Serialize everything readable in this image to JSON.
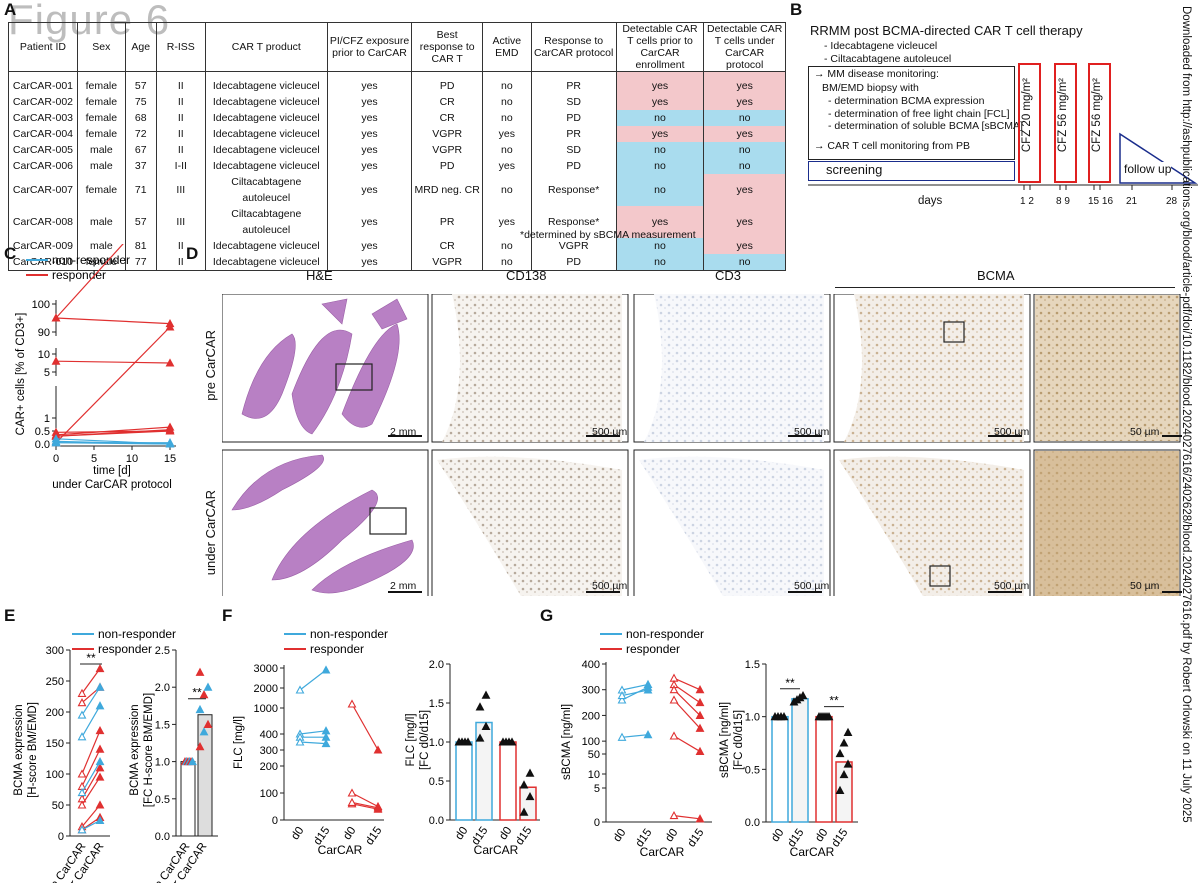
{
  "watermark": "Figure 6",
  "panel_labels": {
    "a": "A",
    "b": "B",
    "c": "C",
    "d": "D",
    "e": "E",
    "f": "F",
    "g": "G"
  },
  "table": {
    "headers": [
      "Patient ID",
      "Sex",
      "Age",
      "R-ISS",
      "CAR T product",
      "PI/CFZ exposure prior to CarCAR",
      "Best response to CAR T",
      "Active EMD",
      "Response to CarCAR protocol",
      "Detectable CAR T cells prior to CarCAR enrollment",
      "Detectable CAR T cells under CarCAR protocol"
    ],
    "rows": [
      {
        "id": "CarCAR-001",
        "sex": "female",
        "age": "57",
        "riss": "II",
        "product": "Idecabtagene vicleucel",
        "pi": "yes",
        "best": "PD",
        "emd": "no",
        "resp": "PR",
        "prior": "yes",
        "under": "yes"
      },
      {
        "id": "CarCAR-002",
        "sex": "female",
        "age": "75",
        "riss": "II",
        "product": "Idecabtagene vicleucel",
        "pi": "yes",
        "best": "CR",
        "emd": "no",
        "resp": "SD",
        "prior": "yes",
        "under": "yes"
      },
      {
        "id": "CarCAR-003",
        "sex": "female",
        "age": "68",
        "riss": "II",
        "product": "Idecabtagene vicleucel",
        "pi": "yes",
        "best": "CR",
        "emd": "no",
        "resp": "PD",
        "prior": "no",
        "under": "no"
      },
      {
        "id": "CarCAR-004",
        "sex": "female",
        "age": "72",
        "riss": "II",
        "product": "Idecabtagene vicleucel",
        "pi": "yes",
        "best": "VGPR",
        "emd": "yes",
        "resp": "PR",
        "prior": "yes",
        "under": "yes"
      },
      {
        "id": "CarCAR-005",
        "sex": "male",
        "age": "67",
        "riss": "II",
        "product": "Idecabtagene vicleucel",
        "pi": "yes",
        "best": "VGPR",
        "emd": "no",
        "resp": "SD",
        "prior": "no",
        "under": "no"
      },
      {
        "id": "CarCAR-006",
        "sex": "male",
        "age": "37",
        "riss": "I-II",
        "product": "Idecabtagene vicleucel",
        "pi": "yes",
        "best": "PD",
        "emd": "yes",
        "resp": "PD",
        "prior": "no",
        "under": "no"
      },
      {
        "id": "CarCAR-007",
        "sex": "female",
        "age": "71",
        "riss": "III",
        "product": "Ciltacabtagene autoleucel",
        "pi": "yes",
        "best": "MRD neg. CR",
        "emd": "no",
        "resp": "Response*",
        "prior": "no",
        "under": "yes"
      },
      {
        "id": "CarCAR-008",
        "sex": "male",
        "age": "57",
        "riss": "III",
        "product": "Ciltacabtagene autoleucel",
        "pi": "yes",
        "best": "PR",
        "emd": "yes",
        "resp": "Response*",
        "prior": "yes",
        "under": "yes"
      },
      {
        "id": "CarCAR-009",
        "sex": "male",
        "age": "81",
        "riss": "II",
        "product": "Idecabtagene vicleucel",
        "pi": "yes",
        "best": "CR",
        "emd": "no",
        "resp": "VGPR",
        "prior": "no",
        "under": "yes"
      },
      {
        "id": "CarCAR-010",
        "sex": "female",
        "age": "77",
        "riss": "II",
        "product": "Idecabtagene vicleucel",
        "pi": "yes",
        "best": "VGPR",
        "emd": "no",
        "resp": "PD",
        "prior": "no",
        "under": "no"
      }
    ],
    "footnote": "*determined by sBCMA measurement"
  },
  "panel_b": {
    "title": "RRMM post BCMA-directed CAR T cell therapy",
    "products": [
      "- Idecabtagene vicleucel",
      "- Ciltacabtagene autoleucel"
    ],
    "monitoring": [
      "→ MM disease monitoring:",
      "BM/EMD biopsy with",
      "- determination BCMA expression",
      "- determination of free light chain [FCL]",
      "- determination of soluble BCMA [sBCMA]",
      "→ CAR T cell monitoring from PB"
    ],
    "screening": "screening",
    "cfz": [
      "CFZ 20 mg/m²",
      "CFZ 56 mg/m²",
      "CFZ 56 mg/m²"
    ],
    "followup": "follow up",
    "days_label": "days",
    "day_ticks": [
      "1 2",
      "8 9",
      "15 16",
      "21",
      "28"
    ]
  },
  "side_text": "Downloaded from http://ashpublications.org/blood/article-pdf/doi/10.1182/blood.2024027616/2402628/blood.2024027616.pdf by Robert Orlowski on 11 July 2025",
  "legend": {
    "nonresponder": "non-responder",
    "responder": "responder"
  },
  "colors": {
    "blue": "#3fa9dc",
    "red": "#e03030",
    "pink": "#f3c8cb",
    "lightblue": "#a9dcee"
  },
  "chart_data": [
    {
      "type": "line",
      "panel": "C",
      "xlabel": "time [d]",
      "xlabel2": "under CarCAR protocol",
      "ylabel": "CAR+ cells [% of CD3+]",
      "xticks": [
        "0",
        "5",
        "10",
        "15"
      ],
      "yticks": [
        "0.0",
        "0.5",
        "1",
        "5",
        "10",
        "90",
        "100"
      ],
      "series": [
        {
          "name": "responder",
          "pairs": [
            [
              95,
              93
            ],
            [
              20,
              55
            ],
            [
              8,
              7.5
            ],
            [
              0.35,
              0.65
            ],
            [
              0.3,
              0.55
            ],
            [
              0.45,
              0.5
            ],
            [
              0.05,
              4.5
            ],
            [
              0.3,
              0.5
            ]
          ]
        },
        {
          "name": "non-responder",
          "pairs": [
            [
              0.05,
              0.0
            ],
            [
              0.2,
              0.0
            ],
            [
              0.05,
              0.05
            ],
            [
              0.1,
              0.0
            ]
          ]
        }
      ]
    },
    {
      "type": "line",
      "panel": "E-left",
      "ylabel": "BCMA expression [H-score BM/EMD]",
      "categories": [
        "pre CarCAR",
        "under CarCAR"
      ],
      "yticks": [
        "0",
        "50",
        "100",
        "150",
        "200",
        "250",
        "300"
      ],
      "series": [
        {
          "name": "responder",
          "pairs": [
            [
              230,
              270
            ],
            [
              215,
              240
            ],
            [
              100,
              170
            ],
            [
              80,
              140
            ],
            [
              60,
              110
            ],
            [
              50,
              95
            ],
            [
              15,
              50
            ],
            [
              10,
              30
            ]
          ]
        },
        {
          "name": "non-responder",
          "pairs": [
            [
              195,
              240
            ],
            [
              160,
              210
            ],
            [
              70,
              120
            ],
            [
              10,
              25
            ]
          ]
        }
      ],
      "significance": "**"
    },
    {
      "type": "bar",
      "panel": "E-right",
      "ylabel": "BCMA expression [FC H-score BM/EMD]",
      "categories": [
        "pre CarCAR",
        "under CarCAR"
      ],
      "values": [
        1.0,
        1.63
      ],
      "yticks": [
        "0.0",
        "0.5",
        "1.0",
        "1.5",
        "2.0",
        "2.5"
      ],
      "significance": "**"
    },
    {
      "type": "line",
      "panel": "F-left",
      "ylabel": "FLC [mg/l]",
      "xlabel": "CarCAR",
      "categories": [
        "d0",
        "d15",
        "d0",
        "d15"
      ],
      "yticks": [
        "0",
        "100",
        "200",
        "300",
        "400",
        "1000",
        "2000",
        "3000"
      ],
      "series": [
        {
          "name": "non-responder",
          "pairs": [
            [
              1900,
              2900
            ],
            [
              400,
              420
            ],
            [
              380,
              380
            ],
            [
              350,
              340
            ]
          ]
        },
        {
          "name": "responder",
          "pairs": [
            [
              1200,
              300
            ],
            [
              100,
              50
            ],
            [
              60,
              40
            ],
            [
              65,
              45
            ]
          ]
        }
      ]
    },
    {
      "type": "bar",
      "panel": "F-right",
      "ylabel": "FLC [mg/l] [FC d0/d15]",
      "xlabel": "CarCAR",
      "categories": [
        "d0",
        "d15",
        "d0",
        "d15"
      ],
      "values": [
        1.0,
        1.25,
        1.0,
        0.42
      ],
      "yticks": [
        "0.0",
        "0.5",
        "1.0",
        "1.5",
        "2.0"
      ]
    },
    {
      "type": "line",
      "panel": "G-left",
      "ylabel": "sBCMA [ng/ml]",
      "xlabel": "CarCAR",
      "categories": [
        "d0",
        "d15",
        "d0",
        "d15"
      ],
      "yticks": [
        "0",
        "5",
        "10",
        "50",
        "100",
        "200",
        "300",
        "400"
      ],
      "series": [
        {
          "name": "non-responder",
          "pairs": [
            [
              260,
              310
            ],
            [
              115,
              125
            ],
            [
              40,
              42
            ],
            [
              38,
              40
            ]
          ]
        },
        {
          "name": "responder",
          "pairs": [
            [
              345,
              300
            ],
            [
              320,
              250
            ],
            [
              300,
              200
            ],
            [
              260,
              150
            ],
            [
              120,
              60
            ],
            [
              2,
              1
            ]
          ]
        }
      ]
    },
    {
      "type": "bar",
      "panel": "G-right",
      "ylabel": "sBCMA [ng/ml] [FC d0/d15]",
      "xlabel": "CarCAR",
      "categories": [
        "d0",
        "d15",
        "d0",
        "d15"
      ],
      "values": [
        1.0,
        1.17,
        1.0,
        0.57
      ],
      "yticks": [
        "0.0",
        "0.5",
        "1.0",
        "1.5"
      ],
      "significance": [
        "**",
        "**"
      ]
    }
  ],
  "panel_d": {
    "columns": [
      "H&E",
      "CD138",
      "CD3",
      "BCMA"
    ],
    "rows": [
      "pre CarCAR",
      "under CarCAR"
    ],
    "scales": {
      "he": "2 mm",
      "mid": "500 µm",
      "zoom": "50 µm"
    }
  }
}
